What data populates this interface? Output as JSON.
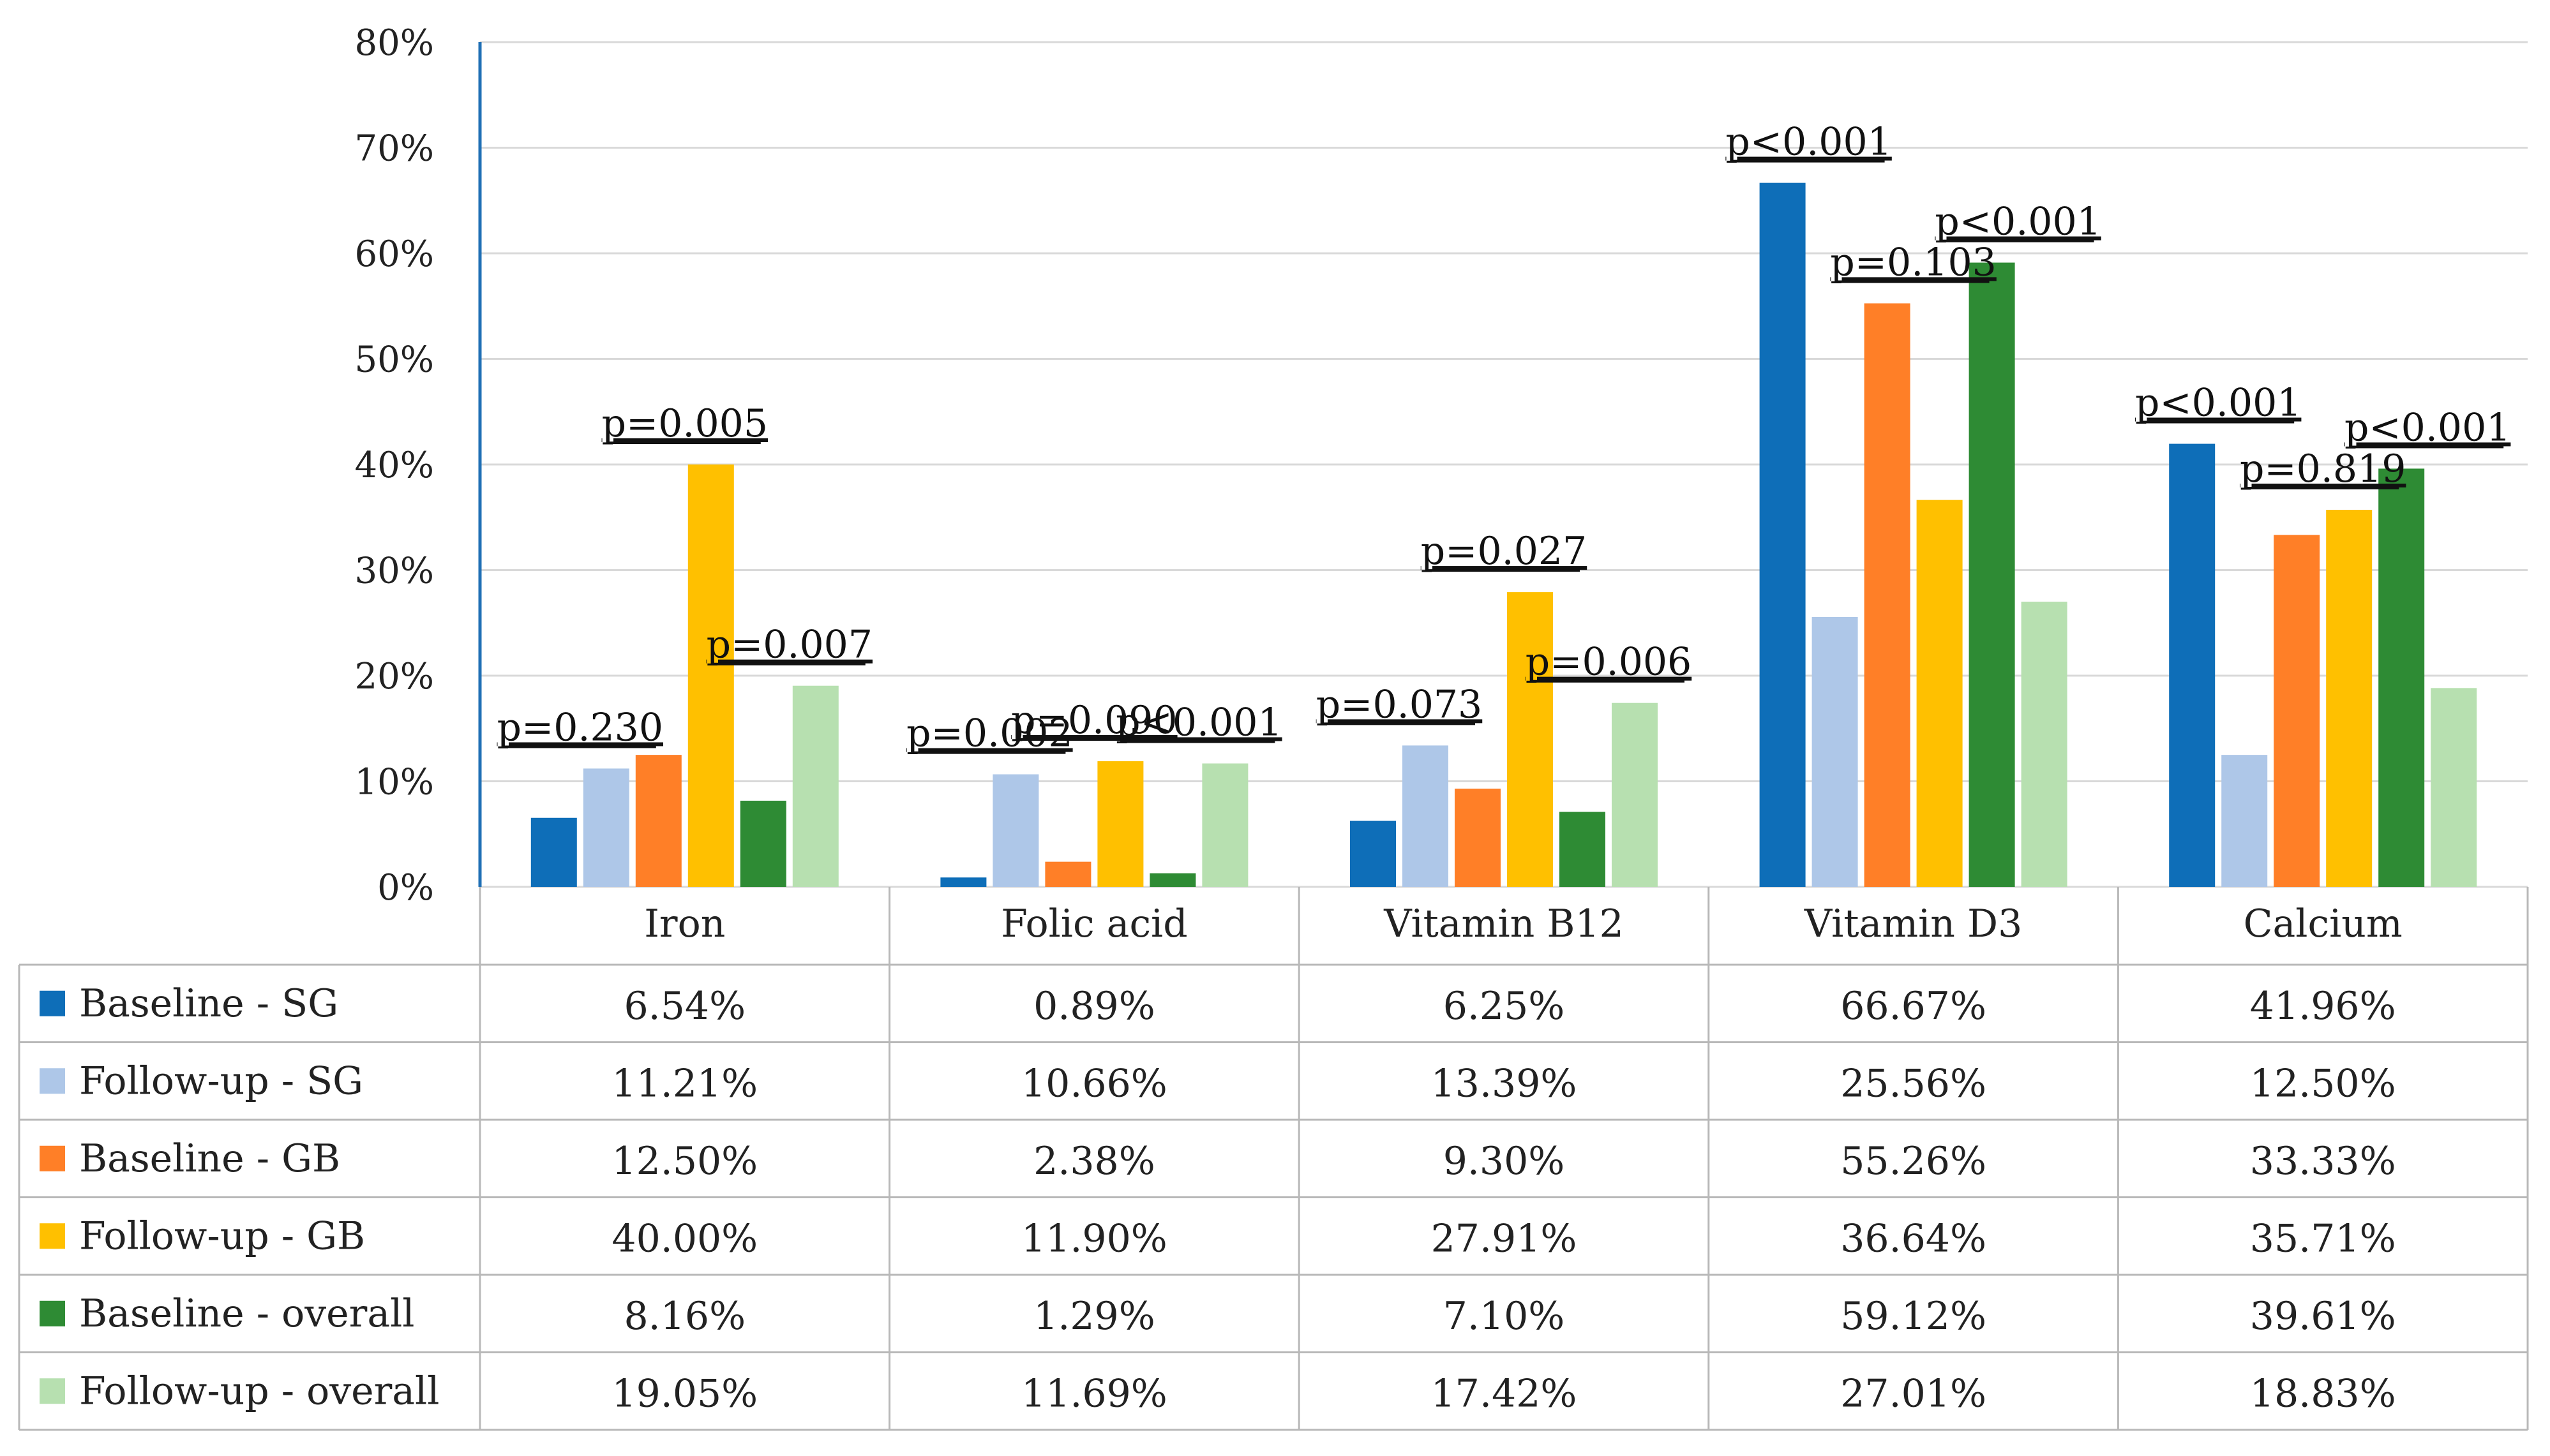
{
  "chart_data": {
    "type": "bar",
    "categories": [
      "Iron",
      "Folic acid",
      "Vitamin B12",
      "Vitamin D3",
      "Calcium"
    ],
    "y_ticks": [
      "0%",
      "10%",
      "20%",
      "30%",
      "40%",
      "50%",
      "60%",
      "70%",
      "80%"
    ],
    "ylim": [
      0,
      80
    ],
    "grid": true,
    "series": [
      {
        "name": "Baseline - SG",
        "color": "#0E6EB8",
        "values": [
          6.54,
          0.89,
          6.25,
          66.67,
          41.96
        ],
        "labels": [
          "6.54%",
          "0.89%",
          "6.25%",
          "66.67%",
          "41.96%"
        ]
      },
      {
        "name": "Follow-up - SG",
        "color": "#AEC7E8",
        "values": [
          11.21,
          10.66,
          13.39,
          25.56,
          12.5
        ],
        "labels": [
          "11.21%",
          "10.66%",
          "13.39%",
          "25.56%",
          "12.50%"
        ]
      },
      {
        "name": "Baseline - GB",
        "color": "#FF7F27",
        "values": [
          12.5,
          2.38,
          9.3,
          55.26,
          33.33
        ],
        "labels": [
          "12.50%",
          "2.38%",
          "9.30%",
          "55.26%",
          "33.33%"
        ]
      },
      {
        "name": "Follow-up - GB",
        "color": "#FFC000",
        "values": [
          40.0,
          11.9,
          27.91,
          36.64,
          35.71
        ],
        "labels": [
          "40.00%",
          "11.90%",
          "27.91%",
          "36.64%",
          "35.71%"
        ]
      },
      {
        "name": "Baseline - overall",
        "color": "#2E8B34",
        "values": [
          8.16,
          1.29,
          7.1,
          59.12,
          39.61
        ],
        "labels": [
          "8.16%",
          "1.29%",
          "7.10%",
          "59.12%",
          "39.61%"
        ]
      },
      {
        "name": "Follow-up - overall",
        "color": "#B7E0B0",
        "values": [
          19.05,
          11.69,
          17.42,
          27.01,
          18.83
        ],
        "labels": [
          "19.05%",
          "11.69%",
          "17.42%",
          "27.01%",
          "18.83%"
        ]
      }
    ],
    "p_values": [
      [
        "p=0.230",
        "p=0.005",
        "p=0.007"
      ],
      [
        "p=0.002",
        "p=0.090",
        "p<0.001"
      ],
      [
        "p=0.073",
        "p=0.027",
        "p=0.006"
      ],
      [
        "p<0.001",
        "p=0.103",
        "p<0.001"
      ],
      [
        "p<0.001",
        "p=0.819",
        "p<0.001"
      ]
    ]
  }
}
